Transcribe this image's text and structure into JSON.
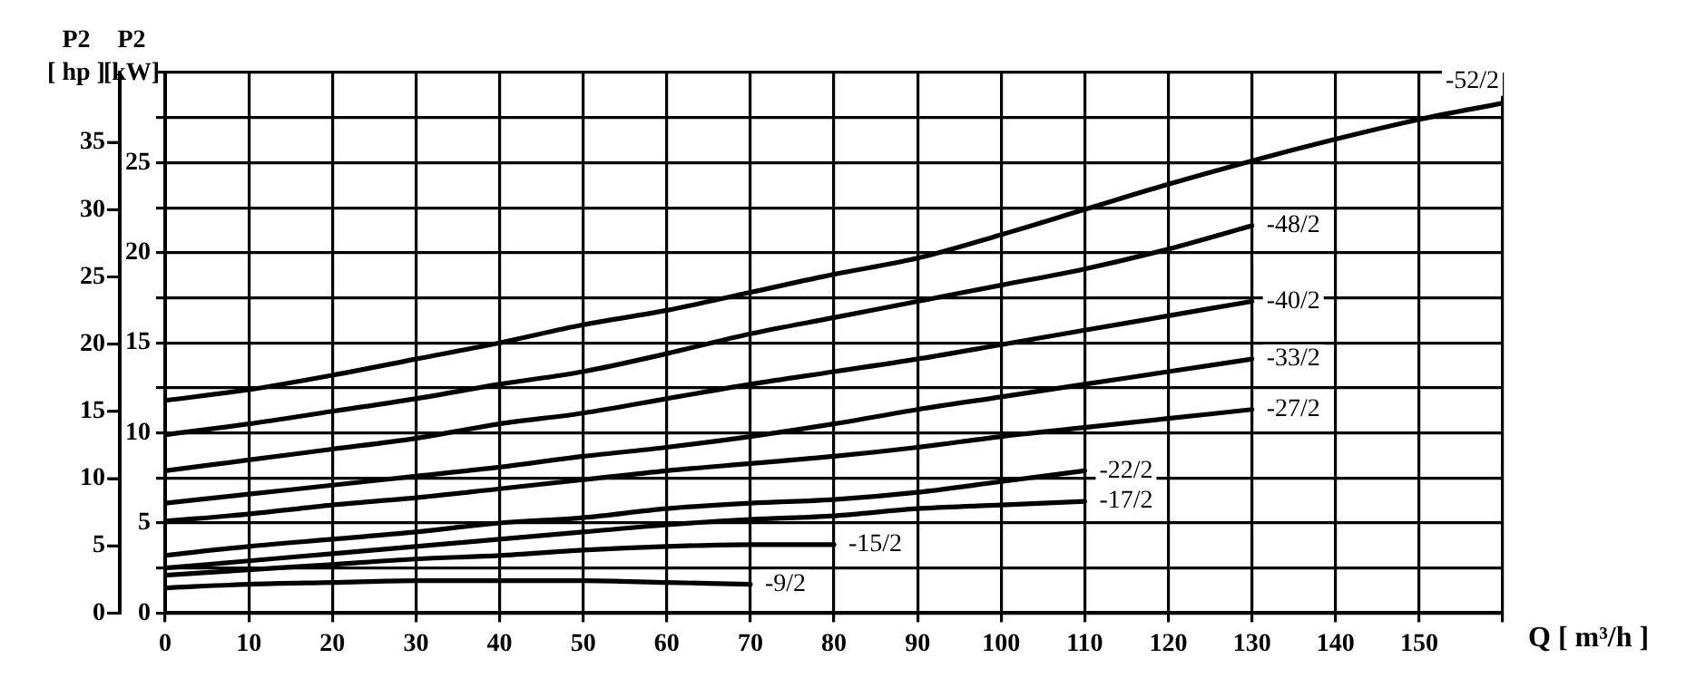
{
  "chart_data": {
    "type": "line",
    "xlabel": "Q [ m³/h ]",
    "ylabel": "P2 [kW]",
    "y2label": "P2 [ hp ]",
    "xlim": [
      0,
      160
    ],
    "xticks": [
      0,
      10,
      20,
      30,
      40,
      50,
      60,
      70,
      80,
      90,
      100,
      110,
      120,
      130,
      140,
      150,
      {
        "value": 160,
        "label": null
      }
    ],
    "ylim": [
      0,
      30
    ],
    "yticks": [
      0,
      {
        "value": 2.5,
        "label": null
      },
      5,
      {
        "value": 7.5,
        "label": null
      },
      10,
      {
        "value": 12.5,
        "label": null
      },
      15,
      {
        "value": 17.5,
        "label": null
      },
      20,
      {
        "value": 22.5,
        "label": null
      },
      25,
      {
        "value": 27.5,
        "label": null
      },
      {
        "value": 30,
        "label": null
      }
    ],
    "y2lim": [
      0,
      40.2
    ],
    "y2ticks": [
      0,
      5,
      10,
      15,
      20,
      25,
      30,
      35
    ],
    "grid": true,
    "legend": false,
    "marker": "none",
    "line_style": "solid",
    "series": [
      {
        "name": "-52/2",
        "color": "#000000",
        "x": [
          0,
          10,
          20,
          30,
          40,
          50,
          60,
          70,
          80,
          90,
          100,
          110,
          120,
          130,
          140,
          150,
          160
        ],
        "values": [
          11.8,
          12.4,
          13.2,
          14.1,
          15.0,
          16.0,
          16.8,
          17.8,
          18.8,
          19.7,
          21.0,
          22.4,
          23.8,
          25.1,
          26.3,
          27.4,
          28.3
        ]
      },
      {
        "name": "-48/2",
        "color": "#000000",
        "x": [
          0,
          10,
          20,
          30,
          40,
          50,
          60,
          70,
          80,
          90,
          100,
          110,
          120,
          130
        ],
        "values": [
          9.9,
          10.5,
          11.2,
          11.9,
          12.7,
          13.4,
          14.4,
          15.5,
          16.4,
          17.3,
          18.2,
          19.1,
          20.2,
          21.5
        ]
      },
      {
        "name": "-40/2",
        "color": "#000000",
        "x": [
          0,
          10,
          20,
          30,
          40,
          50,
          60,
          70,
          80,
          90,
          100,
          110,
          120,
          130
        ],
        "values": [
          7.9,
          8.5,
          9.1,
          9.7,
          10.5,
          11.1,
          11.9,
          12.7,
          13.4,
          14.1,
          14.9,
          15.7,
          16.5,
          17.3
        ]
      },
      {
        "name": "-33/2",
        "color": "#000000",
        "x": [
          0,
          10,
          20,
          30,
          40,
          50,
          60,
          70,
          80,
          90,
          100,
          110,
          120,
          130
        ],
        "values": [
          6.1,
          6.6,
          7.1,
          7.6,
          8.1,
          8.7,
          9.2,
          9.8,
          10.5,
          11.3,
          12.0,
          12.7,
          13.4,
          14.1
        ]
      },
      {
        "name": "-27/2",
        "color": "#000000",
        "x": [
          0,
          10,
          20,
          30,
          40,
          50,
          60,
          70,
          80,
          90,
          100,
          110,
          120,
          130
        ],
        "values": [
          5.1,
          5.5,
          6.0,
          6.4,
          6.9,
          7.4,
          7.9,
          8.3,
          8.7,
          9.2,
          9.8,
          10.3,
          10.8,
          11.3
        ]
      },
      {
        "name": "-22/2",
        "color": "#000000",
        "x": [
          0,
          10,
          20,
          30,
          40,
          50,
          60,
          70,
          80,
          90,
          100,
          110
        ],
        "values": [
          3.2,
          3.7,
          4.1,
          4.5,
          5.0,
          5.3,
          5.8,
          6.1,
          6.3,
          6.7,
          7.3,
          7.9
        ]
      },
      {
        "name": "-17/2",
        "color": "#000000",
        "x": [
          0,
          10,
          20,
          30,
          40,
          50,
          60,
          70,
          80,
          90,
          100,
          110
        ],
        "values": [
          2.5,
          2.9,
          3.3,
          3.7,
          4.1,
          4.5,
          4.9,
          5.2,
          5.4,
          5.8,
          6.0,
          6.2
        ]
      },
      {
        "name": "-15/2",
        "color": "#000000",
        "x": [
          0,
          10,
          20,
          30,
          40,
          50,
          60,
          70,
          80
        ],
        "values": [
          2.1,
          2.4,
          2.7,
          3.0,
          3.2,
          3.5,
          3.7,
          3.8,
          3.8
        ]
      },
      {
        "name": "-9/2",
        "color": "#000000",
        "x": [
          0,
          10,
          20,
          30,
          40,
          50,
          60,
          70
        ],
        "values": [
          1.4,
          1.6,
          1.7,
          1.8,
          1.8,
          1.8,
          1.7,
          1.6
        ]
      }
    ]
  }
}
